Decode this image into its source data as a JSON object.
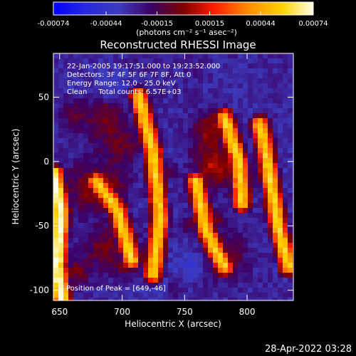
{
  "colorbar": {
    "ticks": [
      "-0.00074",
      "-0.00044",
      "-0.00015",
      "0.00015",
      "0.00044",
      "0.00074"
    ],
    "unit_label": "(photons cm⁻² s⁻¹ asec⁻²)",
    "colors": [
      "#0000ff",
      "#2828e0",
      "#3c3cbe",
      "#3c0064",
      "#7f0000",
      "#ff1e00",
      "#ff8c00",
      "#ffd200",
      "#ffffe6"
    ]
  },
  "plot": {
    "title": "Reconstructed RHESSI Image",
    "annotations": [
      "22-Jan-2005 19:17:51.000 to 19:23:52.000",
      "Detectors: 3F 4F 5F 6F 7F 8F, Att 0",
      "Energy Range: 12.0 - 25.0 keV",
      "Clean     Total counts: 6.57E+03"
    ],
    "peak_label": "Position of Peak = [649,-46]"
  },
  "footer": {
    "timestamp": "28-Apr-2022 03:28"
  },
  "chart_data": {
    "type": "heatmap",
    "title": "Reconstructed RHESSI Image",
    "xlabel": "Heliocentric X (arcsec)",
    "ylabel": "Heliocentric Y (arcsec)",
    "xlim": [
      645,
      837
    ],
    "ylim": [
      -108,
      84
    ],
    "x_ticks": [
      650,
      700,
      750,
      800
    ],
    "y_ticks": [
      -100,
      -50,
      0,
      50
    ],
    "colorbar_range": [
      -0.00074,
      0.00074
    ],
    "colorbar_ticks": [
      -0.00074,
      -0.00044,
      -0.00015,
      0.00015,
      0.00044,
      0.00074
    ],
    "peak": [
      649,
      -46
    ]
  }
}
